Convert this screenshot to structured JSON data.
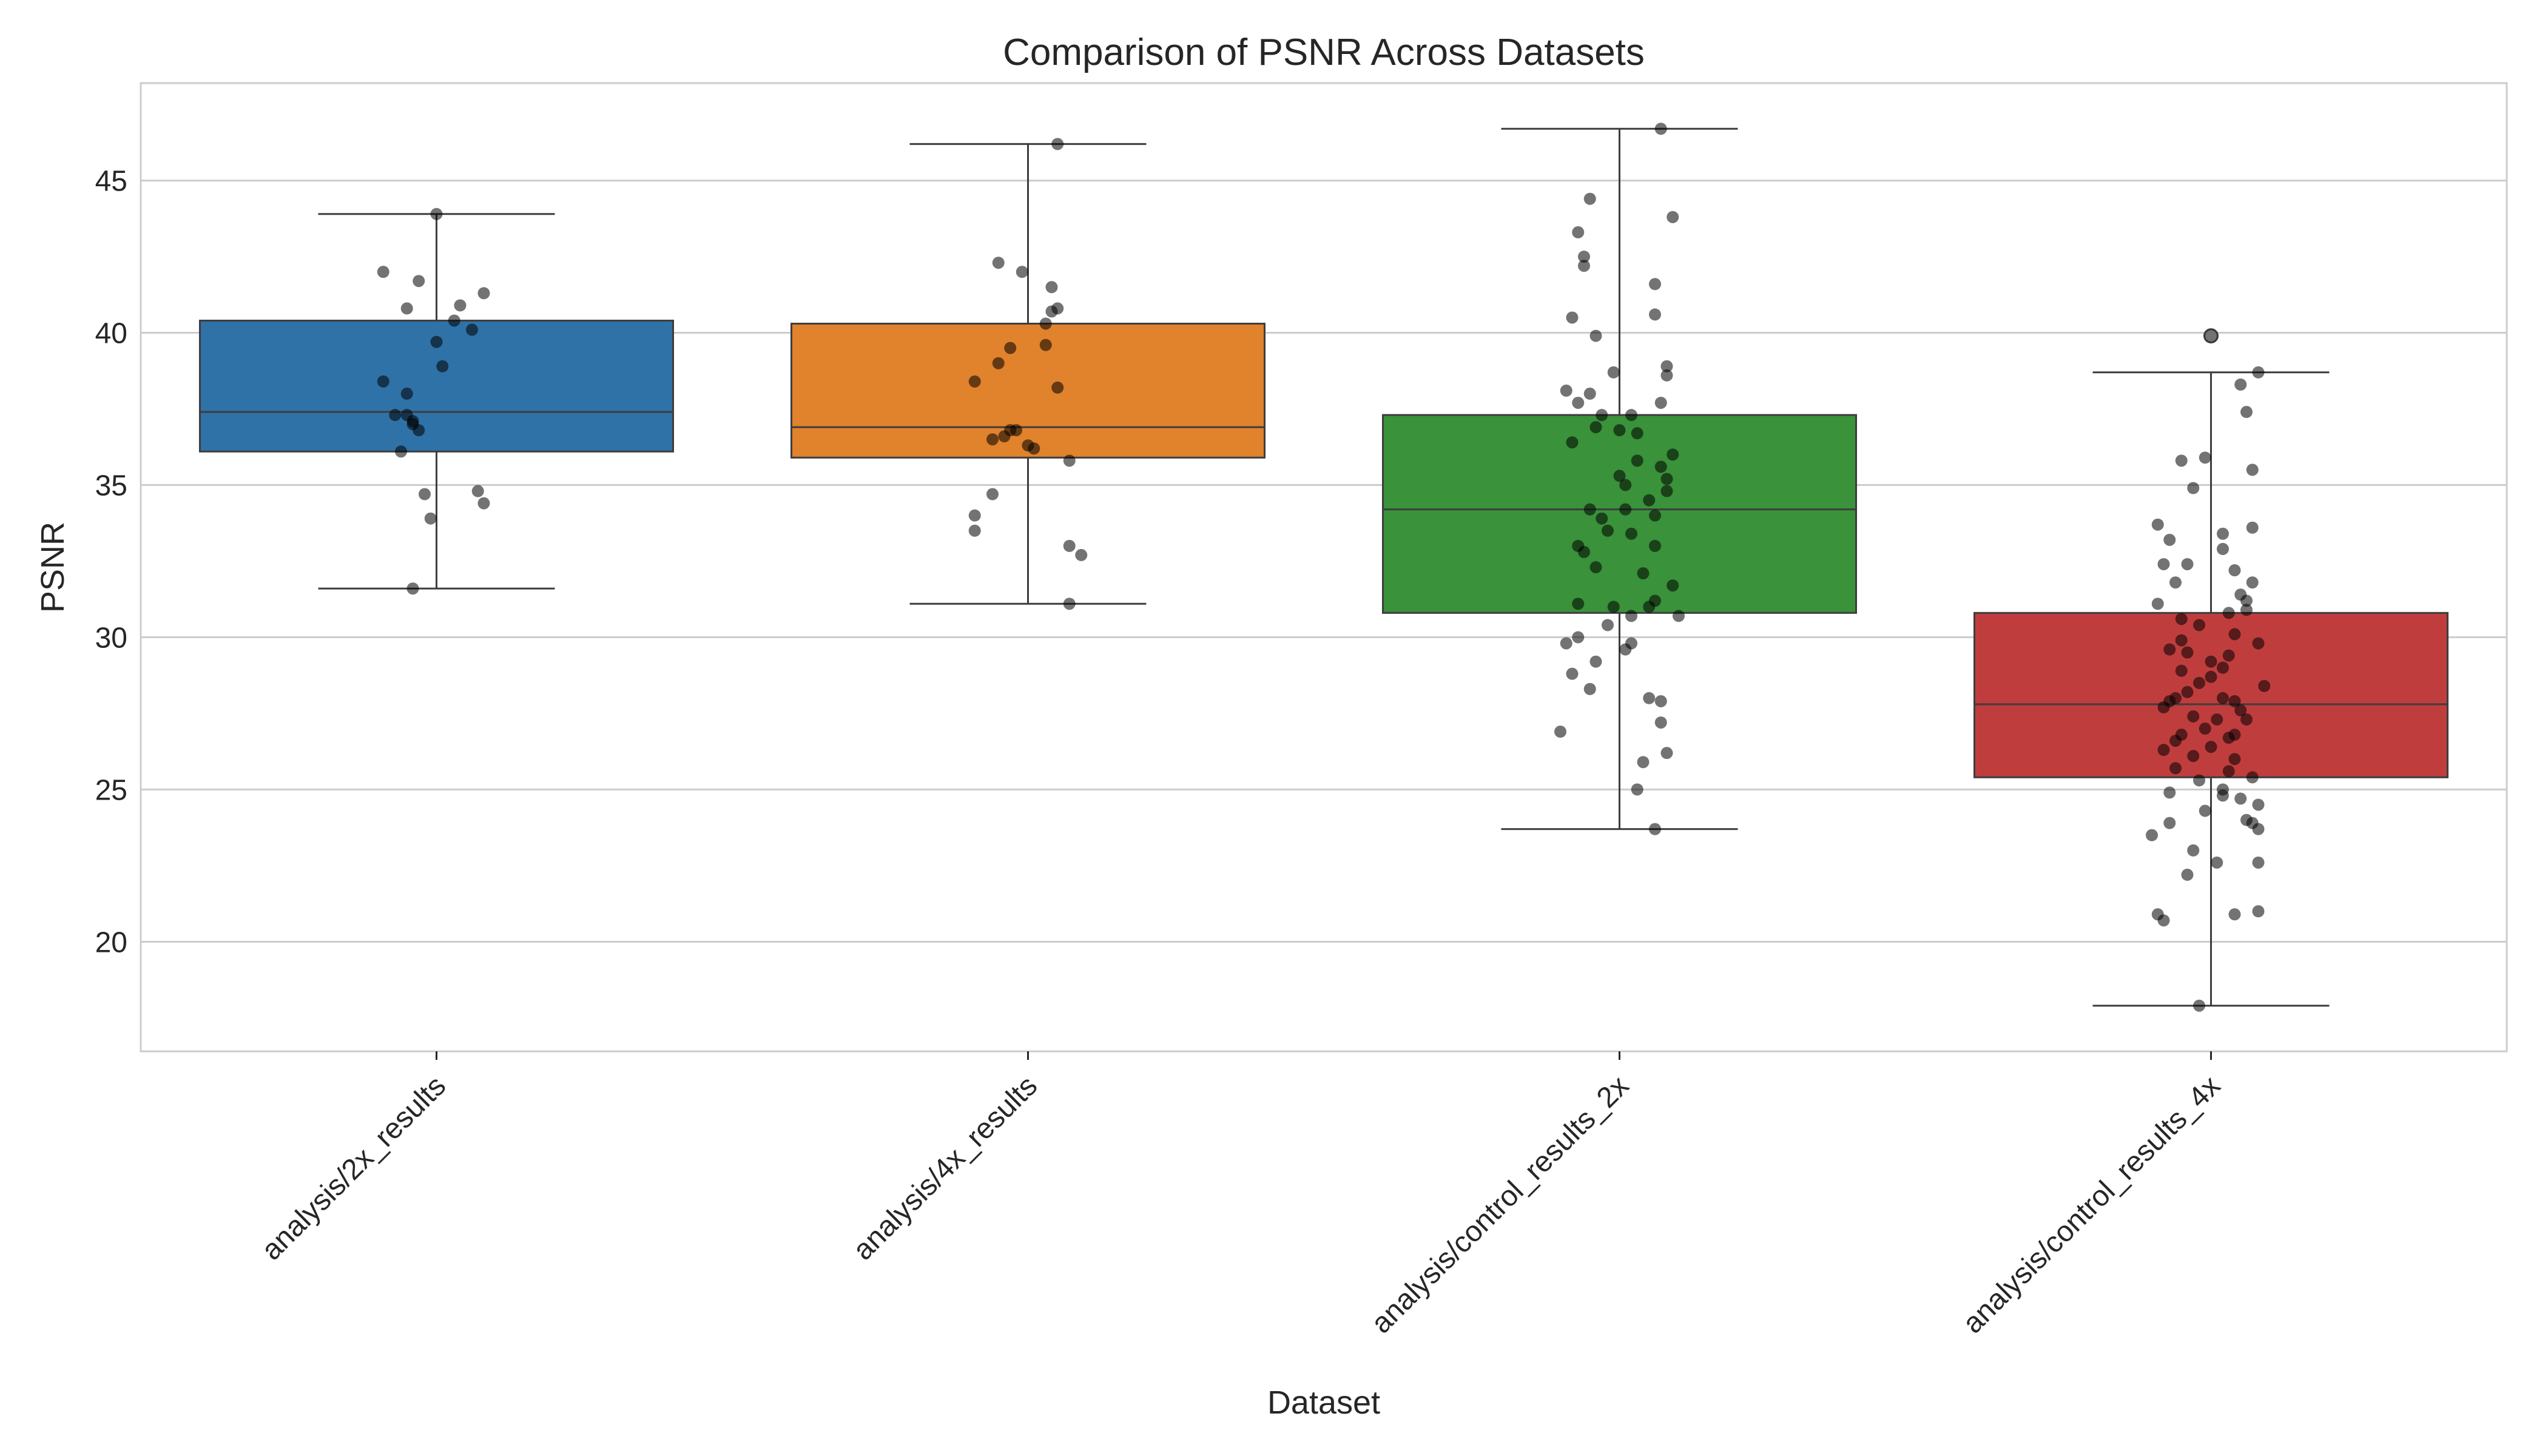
{
  "chart_data": {
    "type": "box",
    "title": "Comparison of PSNR Across Datasets",
    "xlabel": "Dataset",
    "ylabel": "PSNR",
    "ylim": [
      16.4,
      48.2
    ],
    "yticks": [
      20,
      25,
      30,
      35,
      40,
      45
    ],
    "grid": true,
    "categories": [
      "analysis/2x_results",
      "analysis/4x_results",
      "analysis/control_results_2x",
      "analysis/control_results_4x"
    ],
    "boxes": [
      {
        "category": "analysis/2x_results",
        "color": "#2f72a7",
        "whisker_low": 31.6,
        "q1": 36.1,
        "median": 37.4,
        "q3": 40.4,
        "whisker_high": 43.9,
        "outliers": []
      },
      {
        "category": "analysis/4x_results",
        "color": "#e1822c",
        "whisker_low": 31.1,
        "q1": 35.9,
        "median": 36.9,
        "q3": 40.3,
        "whisker_high": 46.2,
        "outliers": []
      },
      {
        "category": "analysis/control_results_2x",
        "color": "#3a923a",
        "whisker_low": 23.7,
        "q1": 30.8,
        "median": 34.2,
        "q3": 37.3,
        "whisker_high": 46.7,
        "outliers": []
      },
      {
        "category": "analysis/control_results_4x",
        "color": "#c03d3e",
        "whisker_low": 17.9,
        "q1": 25.4,
        "median": 27.8,
        "q3": 30.8,
        "whisker_high": 38.7,
        "outliers": [
          39.9
        ]
      }
    ],
    "points_color": "#000000",
    "points": [
      [
        [
          -0.09,
          42.0
        ],
        [
          0.04,
          40.9
        ],
        [
          -0.05,
          40.8
        ],
        [
          0.08,
          41.3
        ],
        [
          0.03,
          40.4
        ],
        [
          0.06,
          40.1
        ],
        [
          0.0,
          39.7
        ],
        [
          -0.09,
          38.4
        ],
        [
          0.01,
          38.9
        ],
        [
          -0.05,
          38.0
        ],
        [
          -0.07,
          37.3
        ],
        [
          -0.04,
          37.0
        ],
        [
          -0.03,
          36.8
        ],
        [
          -0.05,
          37.3
        ],
        [
          -0.06,
          36.1
        ],
        [
          -0.02,
          34.7
        ],
        [
          0.07,
          34.8
        ],
        [
          0.08,
          34.4
        ],
        [
          -0.01,
          33.9
        ],
        [
          -0.04,
          31.6
        ],
        [
          0.0,
          43.9
        ],
        [
          -0.03,
          41.7
        ],
        [
          -0.04,
          37.1
        ]
      ],
      [
        [
          0.05,
          46.2
        ],
        [
          -0.05,
          42.3
        ],
        [
          -0.01,
          42.0
        ],
        [
          0.04,
          41.5
        ],
        [
          0.05,
          40.8
        ],
        [
          0.04,
          40.7
        ],
        [
          0.03,
          40.3
        ],
        [
          0.03,
          39.6
        ],
        [
          -0.03,
          39.5
        ],
        [
          -0.05,
          39.0
        ],
        [
          -0.09,
          38.4
        ],
        [
          0.05,
          38.2
        ],
        [
          -0.03,
          36.8
        ],
        [
          -0.04,
          36.6
        ],
        [
          -0.06,
          36.5
        ],
        [
          -0.02,
          36.8
        ],
        [
          0.01,
          36.2
        ],
        [
          0.07,
          35.8
        ],
        [
          -0.06,
          34.7
        ],
        [
          -0.09,
          34.0
        ],
        [
          -0.09,
          33.5
        ],
        [
          0.07,
          33.0
        ],
        [
          0.09,
          32.7
        ],
        [
          0.07,
          31.1
        ],
        [
          0.0,
          36.3
        ]
      ],
      [
        [
          0.07,
          46.7
        ],
        [
          -0.05,
          44.4
        ],
        [
          -0.07,
          43.3
        ],
        [
          0.09,
          43.8
        ],
        [
          -0.06,
          42.5
        ],
        [
          -0.06,
          42.2
        ],
        [
          0.06,
          41.6
        ],
        [
          -0.08,
          40.5
        ],
        [
          0.06,
          40.6
        ],
        [
          -0.04,
          39.9
        ],
        [
          0.08,
          38.9
        ],
        [
          0.08,
          38.6
        ],
        [
          -0.01,
          38.7
        ],
        [
          -0.09,
          38.1
        ],
        [
          -0.07,
          37.7
        ],
        [
          -0.05,
          38.0
        ],
        [
          0.07,
          37.7
        ],
        [
          -0.03,
          37.3
        ],
        [
          0.02,
          37.3
        ],
        [
          -0.08,
          36.4
        ],
        [
          0.0,
          36.8
        ],
        [
          0.03,
          36.7
        ],
        [
          0.09,
          36.0
        ],
        [
          0.07,
          35.6
        ],
        [
          0.08,
          35.2
        ],
        [
          0.0,
          35.3
        ],
        [
          -0.05,
          34.2
        ],
        [
          0.05,
          34.5
        ],
        [
          0.01,
          34.2
        ],
        [
          -0.03,
          33.9
        ],
        [
          0.08,
          34.8
        ],
        [
          0.02,
          33.4
        ],
        [
          -0.07,
          33.0
        ],
        [
          0.06,
          33.0
        ],
        [
          -0.04,
          32.3
        ],
        [
          0.04,
          32.1
        ],
        [
          0.09,
          31.7
        ],
        [
          -0.07,
          31.1
        ],
        [
          -0.01,
          31.0
        ],
        [
          0.05,
          31.0
        ],
        [
          0.02,
          30.7
        ],
        [
          -0.02,
          30.4
        ],
        [
          -0.09,
          29.8
        ],
        [
          0.02,
          29.8
        ],
        [
          -0.04,
          29.2
        ],
        [
          -0.08,
          28.8
        ],
        [
          0.05,
          28.0
        ],
        [
          0.07,
          27.9
        ],
        [
          0.07,
          27.2
        ],
        [
          -0.05,
          28.3
        ],
        [
          -0.1,
          26.9
        ],
        [
          0.08,
          26.2
        ],
        [
          0.04,
          25.9
        ],
        [
          0.03,
          25.0
        ],
        [
          0.06,
          23.7
        ],
        [
          0.1,
          30.7
        ],
        [
          -0.02,
          33.5
        ],
        [
          0.03,
          35.8
        ],
        [
          0.06,
          34.0
        ],
        [
          -0.06,
          32.8
        ],
        [
          0.01,
          29.6
        ],
        [
          -0.07,
          30.0
        ],
        [
          0.06,
          31.2
        ],
        [
          0.01,
          35.0
        ],
        [
          -0.04,
          36.9
        ]
      ],
      [
        [
          0.0,
          39.9
        ],
        [
          0.08,
          38.7
        ],
        [
          0.05,
          38.3
        ],
        [
          0.06,
          37.4
        ],
        [
          -0.05,
          35.8
        ],
        [
          -0.01,
          35.9
        ],
        [
          0.07,
          35.5
        ],
        [
          -0.03,
          34.9
        ],
        [
          0.07,
          33.6
        ],
        [
          -0.09,
          33.7
        ],
        [
          0.02,
          33.4
        ],
        [
          -0.07,
          33.2
        ],
        [
          -0.04,
          32.4
        ],
        [
          -0.08,
          32.4
        ],
        [
          0.04,
          32.2
        ],
        [
          -0.06,
          31.8
        ],
        [
          0.07,
          31.8
        ],
        [
          0.06,
          31.2
        ],
        [
          -0.09,
          31.1
        ],
        [
          0.03,
          30.8
        ],
        [
          -0.05,
          30.6
        ],
        [
          0.04,
          30.1
        ],
        [
          0.08,
          29.8
        ],
        [
          -0.04,
          29.5
        ],
        [
          0.03,
          29.4
        ],
        [
          -0.07,
          29.6
        ],
        [
          -0.05,
          28.9
        ],
        [
          0.0,
          28.7
        ],
        [
          -0.02,
          28.5
        ],
        [
          0.02,
          28.0
        ],
        [
          0.04,
          27.9
        ],
        [
          -0.07,
          27.9
        ],
        [
          -0.03,
          27.4
        ],
        [
          0.01,
          27.3
        ],
        [
          0.06,
          27.3
        ],
        [
          -0.01,
          27.0
        ],
        [
          -0.05,
          26.8
        ],
        [
          0.04,
          26.8
        ],
        [
          -0.08,
          26.3
        ],
        [
          0.0,
          26.4
        ],
        [
          0.04,
          26.0
        ],
        [
          -0.06,
          25.7
        ],
        [
          0.03,
          25.6
        ],
        [
          -0.02,
          25.3
        ],
        [
          0.07,
          25.4
        ],
        [
          -0.07,
          24.9
        ],
        [
          0.02,
          24.8
        ],
        [
          0.08,
          24.5
        ],
        [
          -0.01,
          24.3
        ],
        [
          0.06,
          24.0
        ],
        [
          -0.07,
          23.9
        ],
        [
          0.08,
          23.7
        ],
        [
          -0.1,
          23.5
        ],
        [
          -0.03,
          23.0
        ],
        [
          0.01,
          22.6
        ],
        [
          0.08,
          22.6
        ],
        [
          -0.04,
          22.2
        ],
        [
          0.08,
          21.0
        ],
        [
          0.04,
          20.9
        ],
        [
          -0.09,
          20.9
        ],
        [
          -0.08,
          20.7
        ],
        [
          -0.02,
          17.9
        ],
        [
          0.05,
          27.6
        ],
        [
          -0.04,
          28.2
        ],
        [
          0.02,
          29.0
        ],
        [
          -0.06,
          26.6
        ],
        [
          0.05,
          31.4
        ],
        [
          -0.02,
          30.4
        ],
        [
          0.09,
          28.4
        ],
        [
          -0.05,
          29.9
        ],
        [
          0.03,
          26.7
        ],
        [
          -0.08,
          27.7
        ],
        [
          0.02,
          25.0
        ],
        [
          0.06,
          30.9
        ],
        [
          -0.03,
          26.1
        ],
        [
          0.0,
          29.2
        ],
        [
          0.05,
          24.7
        ],
        [
          -0.06,
          28.0
        ],
        [
          0.07,
          23.9
        ],
        [
          0.02,
          32.9
        ]
      ]
    ]
  }
}
